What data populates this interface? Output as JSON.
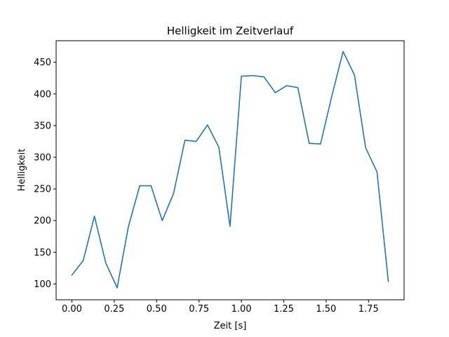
{
  "chart_data": {
    "type": "line",
    "title": "Helligkeit im Zeitverlauf",
    "xlabel": "Zeit [s]",
    "ylabel": "Helligkeit",
    "xlim": [
      -0.093,
      1.96
    ],
    "ylim": [
      75,
      484
    ],
    "x_ticks": [
      0.0,
      0.25,
      0.5,
      0.75,
      1.0,
      1.25,
      1.5,
      1.75
    ],
    "x_tick_labels": [
      "0.00",
      "0.25",
      "0.50",
      "0.75",
      "1.00",
      "1.25",
      "1.50",
      "1.75"
    ],
    "y_ticks": [
      100,
      150,
      200,
      250,
      300,
      350,
      400,
      450
    ],
    "y_tick_labels": [
      "100",
      "150",
      "200",
      "250",
      "300",
      "350",
      "400",
      "450"
    ],
    "grid": false,
    "series": [
      {
        "color": "#1f77b4",
        "x": [
          0.0,
          0.067,
          0.133,
          0.2,
          0.267,
          0.333,
          0.4,
          0.467,
          0.533,
          0.6,
          0.667,
          0.733,
          0.8,
          0.867,
          0.933,
          1.0,
          1.067,
          1.133,
          1.2,
          1.267,
          1.333,
          1.4,
          1.467,
          1.533,
          1.6,
          1.667,
          1.733,
          1.8,
          1.867
        ],
        "y": [
          114,
          137,
          207,
          133,
          94,
          190,
          255,
          255,
          200,
          243,
          327,
          325,
          351,
          316,
          191,
          428,
          429,
          427,
          402,
          413,
          410,
          322,
          321,
          396,
          467,
          430,
          315,
          277,
          104
        ]
      }
    ]
  }
}
